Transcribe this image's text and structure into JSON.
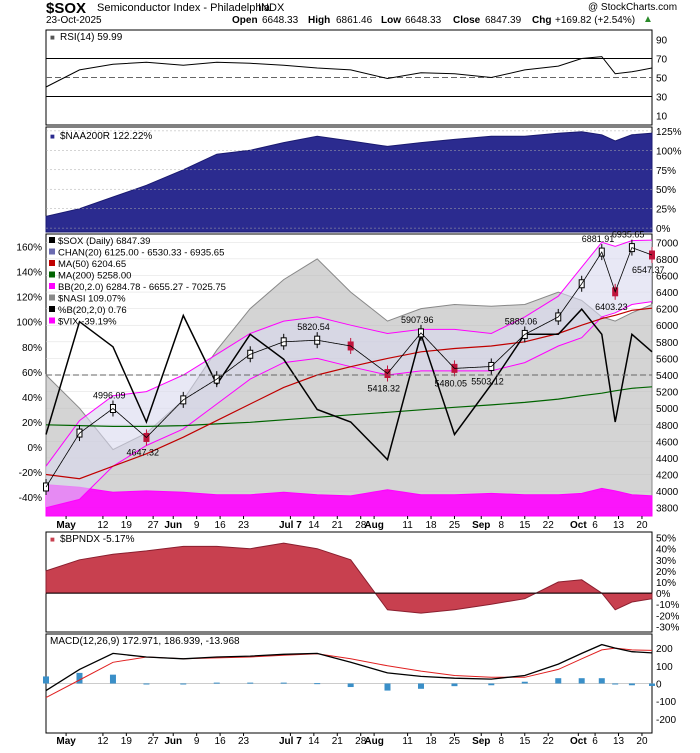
{
  "header": {
    "symbol": "$SOX",
    "name": "Semiconductor Index - Philadelphia",
    "exchange": "INDX",
    "date": "23-Oct-2025",
    "open_label": "Open",
    "open": "6648.33",
    "high_label": "High",
    "high": "6861.46",
    "low_label": "Low",
    "low": "6648.33",
    "close_label": "Close",
    "close": "6847.39",
    "chg_label": "Chg",
    "chg": "+169.82 (+2.54%)",
    "watermark": "@ StockCharts.com"
  },
  "colors": {
    "up": "#000000",
    "down": "#c0143c",
    "ma50": "#c00000",
    "ma200": "#006400",
    "bb": "#ff00ff",
    "nasi": "#9a9a9a",
    "pctb": "#000000",
    "vix": "#ff00ff",
    "naa": "#2b2b8f",
    "bpndx": "#c8404f",
    "macd_hist": "#3a8fc8",
    "rsi_fill": "#3a8a3a"
  },
  "chart_data": [
    {
      "type": "line",
      "panel": "RSI",
      "legend": "RSI(14) 59.99",
      "ylim": [
        0,
        100
      ],
      "y_ticks": [
        10,
        30,
        50,
        70,
        90
      ],
      "levels": [
        30,
        50,
        70
      ],
      "x_dates": [
        "2025-04-25",
        "2025-05-05",
        "2025-05-15",
        "2025-05-25",
        "2025-06-05",
        "2025-06-15",
        "2025-06-25",
        "2025-07-05",
        "2025-07-15",
        "2025-07-25",
        "2025-08-05",
        "2025-08-15",
        "2025-08-25",
        "2025-09-05",
        "2025-09-15",
        "2025-09-25",
        "2025-10-02",
        "2025-10-08",
        "2025-10-12",
        "2025-10-17",
        "2025-10-23"
      ],
      "values": [
        40,
        58,
        64,
        66,
        63,
        66,
        65,
        63,
        60,
        58,
        49,
        55,
        54,
        50,
        58,
        62,
        70,
        72,
        54,
        56,
        60
      ]
    },
    {
      "type": "area",
      "panel": "NAA200R",
      "legend": "$NAA200R 122.22%",
      "ylim": [
        -5,
        130
      ],
      "y_ticks": [
        "0%",
        "25%",
        "50%",
        "75%",
        "100%",
        "125%"
      ],
      "y_tick_values": [
        0,
        25,
        50,
        75,
        100,
        125
      ],
      "x_dates": [
        "2025-04-25",
        "2025-05-05",
        "2025-05-15",
        "2025-05-25",
        "2025-06-05",
        "2025-06-15",
        "2025-06-25",
        "2025-07-05",
        "2025-07-15",
        "2025-07-25",
        "2025-08-05",
        "2025-08-15",
        "2025-08-25",
        "2025-09-05",
        "2025-09-15",
        "2025-09-25",
        "2025-10-02",
        "2025-10-08",
        "2025-10-12",
        "2025-10-17",
        "2025-10-23"
      ],
      "values": [
        15,
        25,
        40,
        55,
        75,
        95,
        100,
        110,
        118,
        112,
        105,
        110,
        114,
        118,
        118,
        122,
        124,
        120,
        112,
        120,
        122
      ]
    },
    {
      "type": "line",
      "panel": "Price",
      "legend": [
        "$SOX (Daily) 6847.39",
        "CHAN(20) 6125.00 - 6530.33 - 6935.65",
        "MA(50) 6204.65",
        "MA(200) 5258.00",
        "BB(20,2.0) 6284.78 - 6655.27 - 7025.75",
        "$NASI 109.07%",
        "%B(20,2,0) 0.76",
        "$VIX -39.19%"
      ],
      "ylim": [
        3700,
        7100
      ],
      "y_ticks_right": [
        3800,
        4000,
        4200,
        4400,
        4600,
        4800,
        5000,
        5200,
        5400,
        5600,
        5800,
        6000,
        6200,
        6400,
        6600,
        6800,
        7000
      ],
      "y_ticks_left": [
        "-40%",
        "-20%",
        "0%",
        "20%",
        "40%",
        "60%",
        "80%",
        "100%",
        "120%",
        "140%",
        "160%"
      ],
      "y_ticks_left_values": [
        -40,
        -20,
        0,
        20,
        40,
        60,
        80,
        100,
        120,
        140,
        160
      ],
      "x_dates": [
        "2025-04-25",
        "2025-05-05",
        "2025-05-15",
        "2025-05-25",
        "2025-06-05",
        "2025-06-15",
        "2025-06-25",
        "2025-07-05",
        "2025-07-15",
        "2025-07-25",
        "2025-08-05",
        "2025-08-15",
        "2025-08-25",
        "2025-09-05",
        "2025-09-15",
        "2025-09-25",
        "2025-10-02",
        "2025-10-08",
        "2025-10-12",
        "2025-10-17",
        "2025-10-23"
      ],
      "series": [
        {
          "name": "$SOX (Daily)",
          "values": [
            4050,
            4700,
            4996,
            4647,
            5100,
            5350,
            5650,
            5800,
            5820,
            5750,
            5418,
            5908,
            5480,
            5503,
            5889,
            6100,
            6500,
            6882,
            6403,
            6936,
            6847
          ]
        },
        {
          "name": "MA(50)",
          "values": [
            4200,
            4150,
            4300,
            4450,
            4650,
            4850,
            5050,
            5250,
            5400,
            5500,
            5600,
            5680,
            5720,
            5750,
            5800,
            5900,
            6000,
            6080,
            6120,
            6180,
            6205
          ]
        },
        {
          "name": "MA(200)",
          "values": [
            4800,
            4790,
            4780,
            4780,
            4790,
            4810,
            4830,
            4860,
            4890,
            4920,
            4950,
            4980,
            5010,
            5040,
            5070,
            5110,
            5150,
            5180,
            5210,
            5240,
            5258
          ]
        },
        {
          "name": "BB upper",
          "values": [
            4300,
            4850,
            5150,
            5200,
            5400,
            5650,
            5900,
            6050,
            6100,
            6000,
            5900,
            5950,
            5950,
            5900,
            6100,
            6350,
            6700,
            7000,
            6950,
            7020,
            7026
          ]
        },
        {
          "name": "BB lower",
          "values": [
            3800,
            3900,
            4300,
            4550,
            4750,
            5050,
            5350,
            5550,
            5600,
            5500,
            5400,
            5450,
            5450,
            5450,
            5550,
            5750,
            5850,
            6100,
            6150,
            6250,
            6285
          ]
        },
        {
          "name": "$NASI",
          "values": [
            5400,
            5000,
            4500,
            4700,
            5100,
            5700,
            6200,
            6550,
            6800,
            6400,
            6050,
            6200,
            6250,
            6230,
            6250,
            6400,
            6300,
            6100,
            6050,
            6150,
            6250
          ]
        },
        {
          "name": "%B",
          "values": [
            0.1,
            1.0,
            0.8,
            0.2,
            1.05,
            0.5,
            0.9,
            0.7,
            0.3,
            0.2,
            -0.1,
            0.9,
            0.1,
            0.5,
            0.9,
            0.9,
            1.1,
            0.9,
            0.2,
            0.9,
            0.76
          ]
        },
        {
          "name": "$VIX",
          "values": [
            -30,
            -32,
            -36,
            -35,
            -36,
            -38,
            -38,
            -36,
            -38,
            -39,
            -34,
            -38,
            -38,
            -37,
            -38,
            -38,
            -37,
            -33,
            -35,
            -38,
            -39
          ]
        }
      ],
      "annotations": [
        "4996.09",
        "4647.32",
        "5820.54",
        "5418.32",
        "5907.96",
        "5480.05",
        "5889.06",
        "5503.12",
        "6881.91",
        "6403.23",
        "6935.65",
        "6547.37"
      ]
    },
    {
      "type": "area",
      "panel": "BPNDX",
      "legend": "$BPNDX -5.17%",
      "ylim": [
        -35,
        55
      ],
      "y_ticks": [
        "-30%",
        "-20%",
        "-10%",
        "0%",
        "10%",
        "20%",
        "30%",
        "40%",
        "50%"
      ],
      "y_tick_values": [
        -30,
        -20,
        -10,
        0,
        10,
        20,
        30,
        40,
        50
      ],
      "x_dates": [
        "2025-04-25",
        "2025-05-05",
        "2025-05-15",
        "2025-05-25",
        "2025-06-05",
        "2025-06-15",
        "2025-06-25",
        "2025-07-05",
        "2025-07-15",
        "2025-07-25",
        "2025-08-05",
        "2025-08-15",
        "2025-08-25",
        "2025-09-05",
        "2025-09-15",
        "2025-09-25",
        "2025-10-02",
        "2025-10-08",
        "2025-10-12",
        "2025-10-17",
        "2025-10-23"
      ],
      "values": [
        20,
        30,
        35,
        38,
        42,
        42,
        40,
        45,
        40,
        30,
        -15,
        -18,
        -15,
        -10,
        -5,
        10,
        12,
        0,
        -15,
        -8,
        -5
      ]
    },
    {
      "type": "line",
      "panel": "MACD",
      "legend": "MACD(12,26,9) 172.971, 186.939, -13.968",
      "ylim": [
        -280,
        280
      ],
      "y_ticks": [
        -200,
        -100,
        0,
        100,
        200
      ],
      "x_dates": [
        "2025-04-25",
        "2025-05-05",
        "2025-05-15",
        "2025-05-25",
        "2025-06-05",
        "2025-06-15",
        "2025-06-25",
        "2025-07-05",
        "2025-07-15",
        "2025-07-25",
        "2025-08-05",
        "2025-08-15",
        "2025-08-25",
        "2025-09-05",
        "2025-09-15",
        "2025-09-25",
        "2025-10-02",
        "2025-10-08",
        "2025-10-12",
        "2025-10-17",
        "2025-10-23"
      ],
      "series": [
        {
          "name": "MACD",
          "values": [
            -40,
            80,
            170,
            150,
            140,
            150,
            155,
            165,
            170,
            120,
            60,
            40,
            30,
            25,
            45,
            110,
            170,
            220,
            200,
            180,
            173
          ]
        },
        {
          "name": "Signal",
          "values": [
            -80,
            20,
            120,
            150,
            140,
            145,
            150,
            160,
            168,
            140,
            100,
            70,
            45,
            35,
            35,
            80,
            140,
            190,
            200,
            190,
            187
          ]
        },
        {
          "name": "Histogram",
          "values": [
            40,
            60,
            50,
            0,
            0,
            5,
            5,
            5,
            2,
            -20,
            -40,
            -30,
            -15,
            -10,
            10,
            30,
            30,
            30,
            0,
            -10,
            -14
          ]
        }
      ]
    }
  ],
  "x_axis": {
    "labels": [
      "May",
      "12",
      "19",
      "27",
      "Jun",
      "9",
      "16",
      "23",
      "Jul 7",
      "14",
      "21",
      "28",
      "Aug",
      "11",
      "18",
      "25",
      "Sep",
      "8",
      "15",
      "22",
      "Oct",
      "6",
      "13",
      "20"
    ],
    "bold": [
      "May",
      "Jun",
      "Jul 7",
      "Aug",
      "Sep",
      "Oct"
    ]
  }
}
